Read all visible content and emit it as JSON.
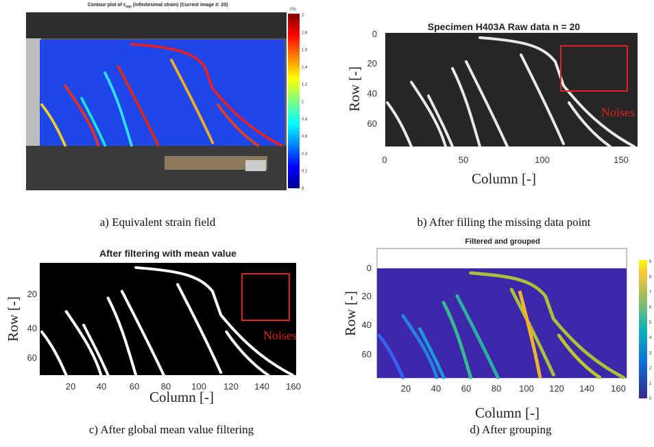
{
  "panels": [
    {
      "caption": "a) Equivalent strain field",
      "title": "Contour plot of ε",
      "title_sub": "eqv",
      "title_rest": " (infinitesimal strain) (Current image #: 20)",
      "colorbar_unit": "(%)",
      "colorbar_ticks": [
        "2",
        "1.8",
        "1.6",
        "1.4",
        "1.2",
        "1",
        "0.8",
        "0.6",
        "0.4",
        "0.2",
        "0"
      ]
    },
    {
      "caption": "b) After filling the missing data point",
      "title": "Specimen H403A Raw data n = 20",
      "xlabel": "Column [-]",
      "ylabel": "Row [-]",
      "xticks": [
        "0",
        "50",
        "100",
        "150"
      ],
      "yticks": [
        "0",
        "20",
        "40",
        "60"
      ],
      "annotation": "Noises"
    },
    {
      "caption": "c) After global mean value filtering",
      "title": "After filtering with mean value",
      "xlabel": "Column [-]",
      "ylabel": "Row [-]",
      "xticks": [
        "20",
        "40",
        "60",
        "80",
        "100",
        "120",
        "140",
        "160"
      ],
      "yticks": [
        "20",
        "40",
        "60"
      ],
      "annotation": "Noises"
    },
    {
      "caption": "d) After grouping",
      "title": "Filtered and grouped",
      "xlabel": "Column [-]",
      "ylabel": "Row [-]",
      "xticks": [
        "20",
        "40",
        "60",
        "80",
        "100",
        "120",
        "140",
        "160"
      ],
      "yticks": [
        "0",
        "20",
        "40",
        "60"
      ],
      "colorbar_ticks": [
        "9",
        "8",
        "7",
        "6",
        "5",
        "4",
        "3",
        "2",
        "1",
        "0"
      ]
    }
  ]
}
